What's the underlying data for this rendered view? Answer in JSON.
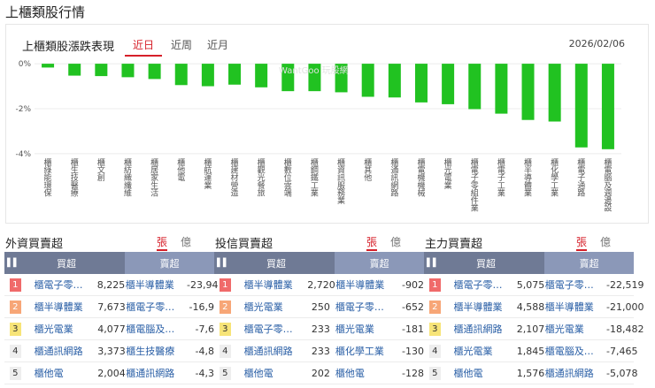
{
  "page_title": "上櫃類股行情",
  "chart_card": {
    "title": "上櫃類股漲跌表現",
    "tabs": [
      {
        "label": "近日",
        "active": true
      },
      {
        "label": "近周",
        "active": false
      },
      {
        "label": "近月",
        "active": false
      }
    ],
    "date": "2026/02/06",
    "watermark": "WantGoo 玩股網"
  },
  "chart_data": {
    "type": "bar",
    "title": "上櫃類股漲跌表現",
    "categories": [
      "櫃綠能環保",
      "櫃生技醫療",
      "櫃文創",
      "櫃紡織纖維",
      "櫃居家生活",
      "櫃他電",
      "櫃航運業",
      "櫃建材營造",
      "櫃觀光餐旅",
      "櫃數位雲端",
      "櫃鋼鐵工業",
      "櫃資訊服務業",
      "櫃其他",
      "櫃通訊網路",
      "櫃電機機械",
      "櫃光電業",
      "櫃電子零組件業",
      "櫃電子工業",
      "櫃半導體業",
      "櫃化學工業",
      "櫃電子通路",
      "櫃電腦及週邊設"
    ],
    "values": [
      -0.17,
      -0.53,
      -0.55,
      -0.6,
      -0.68,
      -0.95,
      -1.0,
      -0.93,
      -1.05,
      -1.22,
      -1.22,
      -1.27,
      -1.47,
      -1.5,
      -1.72,
      -1.8,
      -2.02,
      -2.22,
      -2.5,
      -2.57,
      -3.72,
      -3.8
    ],
    "ylim": [
      -4.2,
      0.2
    ],
    "yticks": [
      0,
      -2,
      -4
    ],
    "ytick_labels": [
      "0%",
      "-2%",
      "-4%"
    ],
    "bar_color": "#21c221",
    "grid": true
  },
  "units": {
    "zhang": "張",
    "yi": "億"
  },
  "sections": [
    {
      "title": "外資買賣超",
      "buy_header": "買超",
      "sell_header": "賣超",
      "buy": [
        {
          "rank": "1",
          "name": "櫃電子零…",
          "value": "8,225"
        },
        {
          "rank": "2",
          "name": "櫃半導體業",
          "value": "7,673"
        },
        {
          "rank": "3",
          "name": "櫃光電業",
          "value": "4,077"
        },
        {
          "rank": "4",
          "name": "櫃通訊網路",
          "value": "3,373"
        },
        {
          "rank": "5",
          "name": "櫃他電",
          "value": "2,004"
        }
      ],
      "sell": [
        {
          "name": "櫃半導體業",
          "value": "-23,94"
        },
        {
          "name": "櫃電子零…",
          "value": "-16,9"
        },
        {
          "name": "櫃電腦及…",
          "value": "-7,6"
        },
        {
          "name": "櫃生技醫療",
          "value": "-4,8"
        },
        {
          "name": "櫃通訊網路",
          "value": "-4,3"
        }
      ]
    },
    {
      "title": "投信買賣超",
      "buy_header": "買超",
      "sell_header": "賣超",
      "buy": [
        {
          "rank": "1",
          "name": "櫃半導體業",
          "value": "2,720"
        },
        {
          "rank": "2",
          "name": "櫃光電業",
          "value": "250"
        },
        {
          "rank": "3",
          "name": "櫃電子零…",
          "value": "233"
        },
        {
          "rank": "4",
          "name": "櫃通訊網路",
          "value": "233"
        },
        {
          "rank": "5",
          "name": "櫃他電",
          "value": "202"
        }
      ],
      "sell": [
        {
          "name": "櫃半導體業",
          "value": "-902"
        },
        {
          "name": "櫃電子零…",
          "value": "-652"
        },
        {
          "name": "櫃光電業",
          "value": "-181"
        },
        {
          "name": "櫃化學工業",
          "value": "-130"
        },
        {
          "name": "櫃他電",
          "value": "-128"
        }
      ]
    },
    {
      "title": "主力買賣超",
      "buy_header": "買超",
      "sell_header": "賣超",
      "buy": [
        {
          "rank": "1",
          "name": "櫃電子零…",
          "value": "5,075"
        },
        {
          "rank": "2",
          "name": "櫃半導體業",
          "value": "4,588"
        },
        {
          "rank": "3",
          "name": "櫃通訊網路",
          "value": "2,107"
        },
        {
          "rank": "4",
          "name": "櫃光電業",
          "value": "1,845"
        },
        {
          "rank": "5",
          "name": "櫃他電",
          "value": "1,576"
        }
      ],
      "sell": [
        {
          "name": "櫃電子零…",
          "value": "-22,519"
        },
        {
          "name": "櫃半導體業",
          "value": "-21,000"
        },
        {
          "name": "櫃光電業",
          "value": "-18,482"
        },
        {
          "name": "櫃電腦及…",
          "value": "-7,465"
        },
        {
          "name": "櫃通訊網路",
          "value": "-5,078"
        }
      ]
    }
  ]
}
